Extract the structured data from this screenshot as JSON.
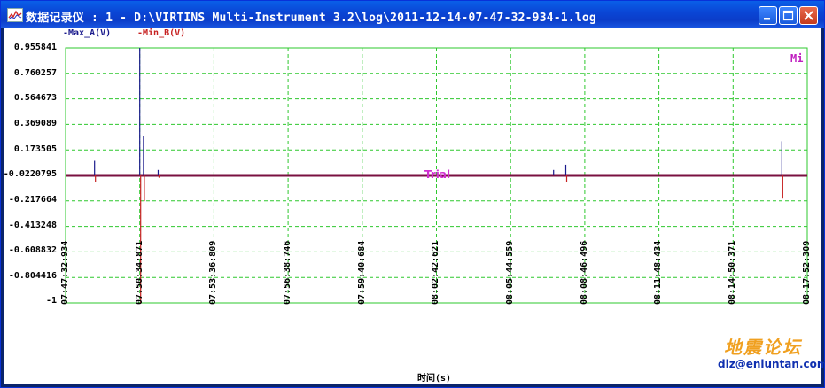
{
  "window": {
    "title": "数据记录仪 : 1 - D:\\VIRTINS Multi-Instrument 3.2\\log\\2011-12-14-07-47-32-934-1.log",
    "buttons": {
      "minimize": "minimize-icon",
      "maximize": "maximize-icon",
      "close": "close-icon"
    }
  },
  "legend": {
    "a": "-Max_A(V)",
    "b": "-Min_B(V)"
  },
  "y_axis": {
    "ticks": [
      "0.955841",
      "0.760257",
      "0.564673",
      "0.369089",
      "0.173505",
      "-0.0220795",
      "-0.217664",
      "-0.413248",
      "-0.608832",
      "-0.804416",
      "-1"
    ]
  },
  "x_axis": {
    "ticks": [
      "07:47:32:934",
      "07:50:34:871",
      "07:53:36:809",
      "07:56:38:746",
      "07:59:40:684",
      "08:02:42:621",
      "08:05:44:559",
      "08:08:46:496",
      "08:11:48:434",
      "08:14:50:371",
      "08:17:52:309"
    ],
    "title": "时间(s)"
  },
  "plot": {
    "mi_label": "Mi",
    "trial_label": "Trial"
  },
  "watermark": {
    "line1": "地震论坛",
    "line2": "diz@enluntan.com"
  },
  "colors": {
    "series_a": "#1a1a8c",
    "series_b": "#c62020",
    "grid": "#2ec82e",
    "baseline": "#7a1040"
  },
  "chart_data": {
    "type": "line",
    "ylim": [
      -1,
      0.955841
    ],
    "xlabel": "时间(s)",
    "series": [
      {
        "name": "Max_A(V)",
        "x": [
          "07:47:32:934",
          "07:48:44:000",
          "07:50:34:871",
          "07:50:44:000",
          "07:51:20:000",
          "08:07:30:000",
          "08:08:00:000",
          "08:16:50:000"
        ],
        "values": [
          -0.022,
          0.09,
          0.955841,
          0.28,
          0.02,
          0.02,
          0.06,
          0.24
        ]
      },
      {
        "name": "Min_B(V)",
        "x": [
          "07:47:32:934",
          "07:48:44:000",
          "07:50:34:871",
          "07:50:44:000",
          "07:51:20:000",
          "08:08:00:000",
          "08:16:50:000"
        ],
        "values": [
          -0.022,
          -0.07,
          -1,
          -0.22,
          -0.04,
          -0.07,
          -0.2
        ]
      }
    ]
  }
}
